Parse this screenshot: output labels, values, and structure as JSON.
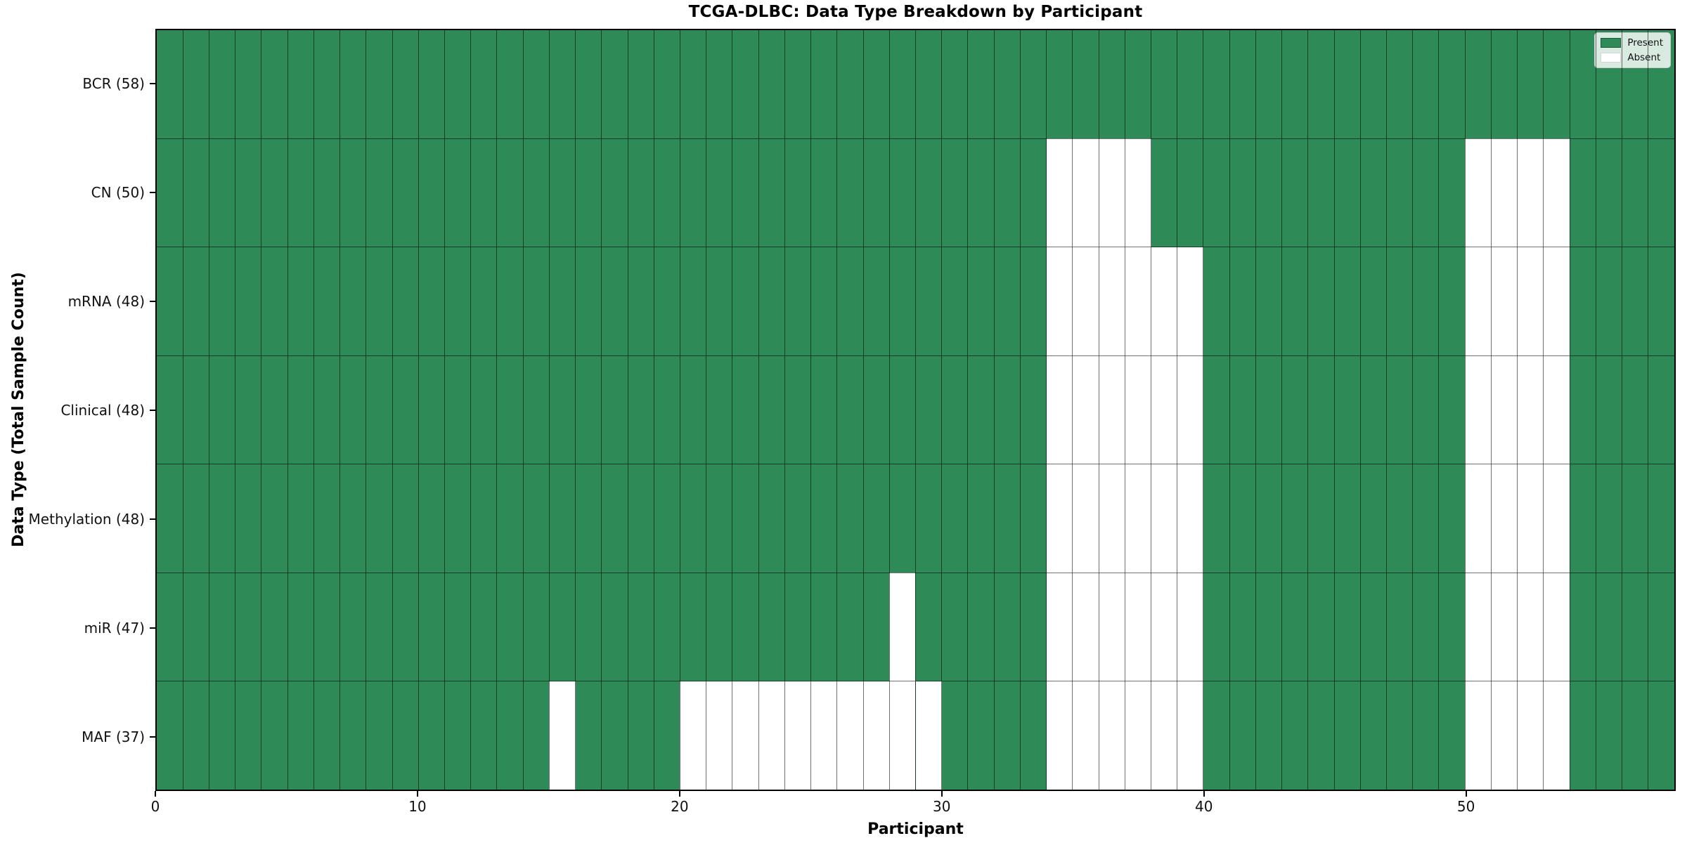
{
  "chart_data": {
    "type": "heatmap",
    "title": "TCGA-DLBC: Data Type Breakdown by Participant",
    "xlabel": "Participant",
    "ylabel": "Data Type (Total Sample Count)",
    "n_participants": 58,
    "xlim": [
      0,
      58
    ],
    "x_ticks": [
      0,
      10,
      20,
      30,
      40,
      50
    ],
    "grid": "cell-edges",
    "legend": {
      "position": "upper right",
      "entries": [
        {
          "label": "Present",
          "color": "#2e8b57"
        },
        {
          "label": "Absent",
          "color": "#ffffff"
        }
      ]
    },
    "rows": [
      {
        "label": "BCR (58)",
        "present_count": 58,
        "absent": []
      },
      {
        "label": "CN (50)",
        "present_count": 50,
        "absent": [
          34,
          35,
          36,
          37,
          50,
          51,
          52,
          53
        ]
      },
      {
        "label": "mRNA (48)",
        "present_count": 48,
        "absent": [
          34,
          35,
          36,
          37,
          38,
          39,
          50,
          51,
          52,
          53
        ]
      },
      {
        "label": "Clinical (48)",
        "present_count": 48,
        "absent": [
          34,
          35,
          36,
          37,
          38,
          39,
          50,
          51,
          52,
          53
        ]
      },
      {
        "label": "Methylation (48)",
        "present_count": 48,
        "absent": [
          34,
          35,
          36,
          37,
          38,
          39,
          50,
          51,
          52,
          53
        ]
      },
      {
        "label": "miR (47)",
        "present_count": 47,
        "absent": [
          28,
          34,
          35,
          36,
          37,
          38,
          39,
          50,
          51,
          52,
          53
        ]
      },
      {
        "label": "MAF (37)",
        "present_count": 37,
        "absent": [
          15,
          20,
          21,
          22,
          23,
          24,
          25,
          26,
          27,
          28,
          29,
          34,
          35,
          36,
          37,
          38,
          39,
          50,
          51,
          52,
          53
        ]
      }
    ],
    "colors": {
      "present": "#2e8b57",
      "absent": "#ffffff",
      "grid_line": "rgba(0,0,0,0.55)",
      "plot_border": "#000000",
      "legend_border": "#cccccc",
      "legend_background": "rgba(255,255,255,0.82)"
    }
  }
}
